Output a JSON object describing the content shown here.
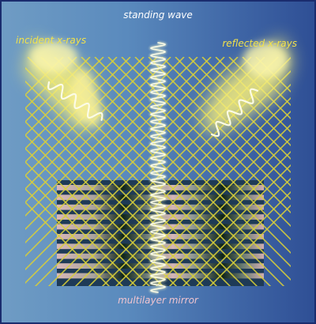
{
  "labels": {
    "incident": "incident x-rays",
    "standing": "standing wave",
    "reflected": "reflected x-rays",
    "mirror": "multilayer mirror"
  },
  "colors": {
    "background_left": "#6f9cc4",
    "background_right": "#2f4f95",
    "border": "#1a2c6e",
    "wavefront_lines": "#d8cf3a",
    "beam_glow": "#f6ee7a",
    "wave_line": "#fbfbe6",
    "mirror_light": "#d9b8b8",
    "mirror_dark": "#0f2418"
  },
  "mirror": {
    "layer_count": 10
  }
}
